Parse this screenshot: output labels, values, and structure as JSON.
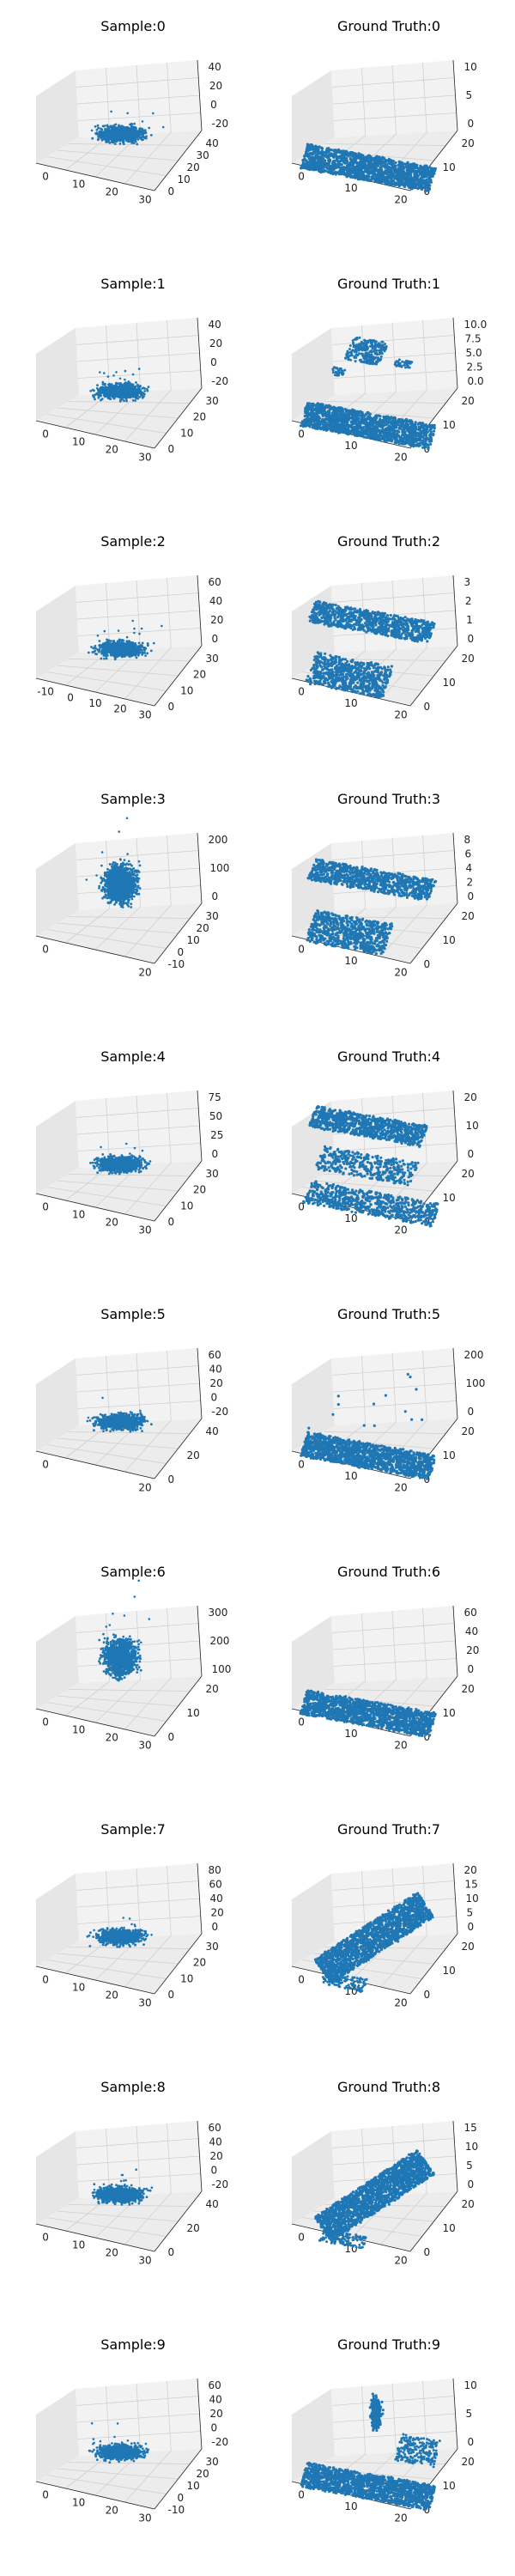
{
  "figure": {
    "rows": 10,
    "cols": 2
  },
  "style": {
    "point_color": "#1f77b4",
    "pane_face": "#f2f2f2",
    "pane_side": "#e6e6e6",
    "pane_floor": "#ececec",
    "grid_color": "#d0d0d0",
    "axis_color": "#222222"
  },
  "chart_data": [
    {
      "title": "Sample:0",
      "type": "scatter-3d",
      "shape": "blob",
      "xticks": [
        "0",
        "10",
        "20",
        "30"
      ],
      "yticks": [
        "0",
        "10",
        "20",
        "30",
        "40"
      ],
      "zticks": [
        "40",
        "20",
        "0",
        "-20"
      ]
    },
    {
      "title": "Ground Truth:0",
      "type": "scatter-3d",
      "shape": "plane",
      "xticks": [
        "0",
        "10",
        "20"
      ],
      "yticks": [
        "0",
        "10",
        "20"
      ],
      "zticks": [
        "10",
        "5",
        "0"
      ]
    },
    {
      "title": "Sample:1",
      "type": "scatter-3d",
      "shape": "blob",
      "xticks": [
        "0",
        "10",
        "20",
        "30"
      ],
      "yticks": [
        "0",
        "10",
        "20",
        "30"
      ],
      "zticks": [
        "40",
        "20",
        "0",
        "-20"
      ]
    },
    {
      "title": "Ground Truth:1",
      "type": "scatter-3d",
      "shape": "plane+objects",
      "xticks": [
        "0",
        "10",
        "20"
      ],
      "yticks": [
        "0",
        "10",
        "20"
      ],
      "zticks": [
        "10.0",
        "7.5",
        "5.0",
        "2.5",
        "0.0"
      ]
    },
    {
      "title": "Sample:2",
      "type": "scatter-3d",
      "shape": "blob",
      "xticks": [
        "-10",
        "0",
        "10",
        "20",
        "30"
      ],
      "yticks": [
        "0",
        "10",
        "20",
        "30"
      ],
      "zticks": [
        "60",
        "40",
        "20",
        "0"
      ]
    },
    {
      "title": "Ground Truth:2",
      "type": "scatter-3d",
      "shape": "two-slabs",
      "xticks": [
        "0",
        "10",
        "20"
      ],
      "yticks": [
        "0",
        "10",
        "20"
      ],
      "zticks": [
        "3",
        "2",
        "1",
        "0"
      ]
    },
    {
      "title": "Sample:3",
      "type": "scatter-3d",
      "shape": "tall-blob",
      "xticks": [
        "0",
        "20"
      ],
      "yticks": [
        "-10",
        "0",
        "10",
        "20",
        "30"
      ],
      "zticks": [
        "200",
        "100",
        "0"
      ]
    },
    {
      "title": "Ground Truth:3",
      "type": "scatter-3d",
      "shape": "two-slabs",
      "xticks": [
        "0",
        "10",
        "20"
      ],
      "yticks": [
        "0",
        "10",
        "20"
      ],
      "zticks": [
        "8",
        "6",
        "4",
        "2",
        "0"
      ]
    },
    {
      "title": "Sample:4",
      "type": "scatter-3d",
      "shape": "blob",
      "xticks": [
        "0",
        "10",
        "20",
        "30"
      ],
      "yticks": [
        "0",
        "10",
        "20",
        "30"
      ],
      "zticks": [
        "75",
        "50",
        "25",
        "0"
      ]
    },
    {
      "title": "Ground Truth:4",
      "type": "scatter-3d",
      "shape": "stacked-slabs",
      "xticks": [
        "0",
        "10",
        "20"
      ],
      "yticks": [
        "0",
        "10",
        "20"
      ],
      "zticks": [
        "20",
        "10",
        "0"
      ]
    },
    {
      "title": "Sample:5",
      "type": "scatter-3d",
      "shape": "blob",
      "xticks": [
        "0",
        "20"
      ],
      "yticks": [
        "0",
        "20",
        "40"
      ],
      "zticks": [
        "60",
        "40",
        "20",
        "0",
        "-20"
      ]
    },
    {
      "title": "Ground Truth:5",
      "type": "scatter-3d",
      "shape": "plane+outliers",
      "xticks": [
        "0",
        "10",
        "20"
      ],
      "yticks": [
        "0",
        "10",
        "20"
      ],
      "zticks": [
        "200",
        "100",
        "0"
      ]
    },
    {
      "title": "Sample:6",
      "type": "scatter-3d",
      "shape": "tall-blob",
      "xticks": [
        "0",
        "10",
        "20",
        "30"
      ],
      "yticks": [
        "0",
        "10",
        "20"
      ],
      "zticks": [
        "300",
        "200",
        "100"
      ]
    },
    {
      "title": "Ground Truth:6",
      "type": "scatter-3d",
      "shape": "plane",
      "xticks": [
        "0",
        "10",
        "20"
      ],
      "yticks": [
        "0",
        "10",
        "20"
      ],
      "zticks": [
        "60",
        "40",
        "20",
        "0"
      ]
    },
    {
      "title": "Sample:7",
      "type": "scatter-3d",
      "shape": "blob",
      "xticks": [
        "0",
        "10",
        "20",
        "30"
      ],
      "yticks": [
        "0",
        "10",
        "20",
        "30"
      ],
      "zticks": [
        "80",
        "60",
        "40",
        "20",
        "0"
      ]
    },
    {
      "title": "Ground Truth:7",
      "type": "scatter-3d",
      "shape": "tilted-slab",
      "xticks": [
        "0",
        "10",
        "20"
      ],
      "yticks": [
        "0",
        "10",
        "20"
      ],
      "zticks": [
        "20",
        "15",
        "10",
        "5",
        "0"
      ]
    },
    {
      "title": "Sample:8",
      "type": "scatter-3d",
      "shape": "blob",
      "xticks": [
        "0",
        "10",
        "20",
        "30"
      ],
      "yticks": [
        "0",
        "20",
        "40"
      ],
      "zticks": [
        "60",
        "40",
        "20",
        "0",
        "-20"
      ]
    },
    {
      "title": "Ground Truth:8",
      "type": "scatter-3d",
      "shape": "tilted-slab",
      "xticks": [
        "0",
        "10",
        "20"
      ],
      "yticks": [
        "0",
        "10",
        "20"
      ],
      "zticks": [
        "15",
        "10",
        "5",
        "0"
      ]
    },
    {
      "title": "Sample:9",
      "type": "scatter-3d",
      "shape": "blob",
      "xticks": [
        "0",
        "10",
        "20",
        "30"
      ],
      "yticks": [
        "-10",
        "0",
        "10",
        "20",
        "30"
      ],
      "zticks": [
        "60",
        "40",
        "20",
        "0",
        "-20"
      ]
    },
    {
      "title": "Ground Truth:9",
      "type": "scatter-3d",
      "shape": "plane+tree",
      "xticks": [
        "0",
        "10",
        "20"
      ],
      "yticks": [
        "0",
        "10",
        "20"
      ],
      "zticks": [
        "10",
        "5",
        "0"
      ]
    }
  ]
}
